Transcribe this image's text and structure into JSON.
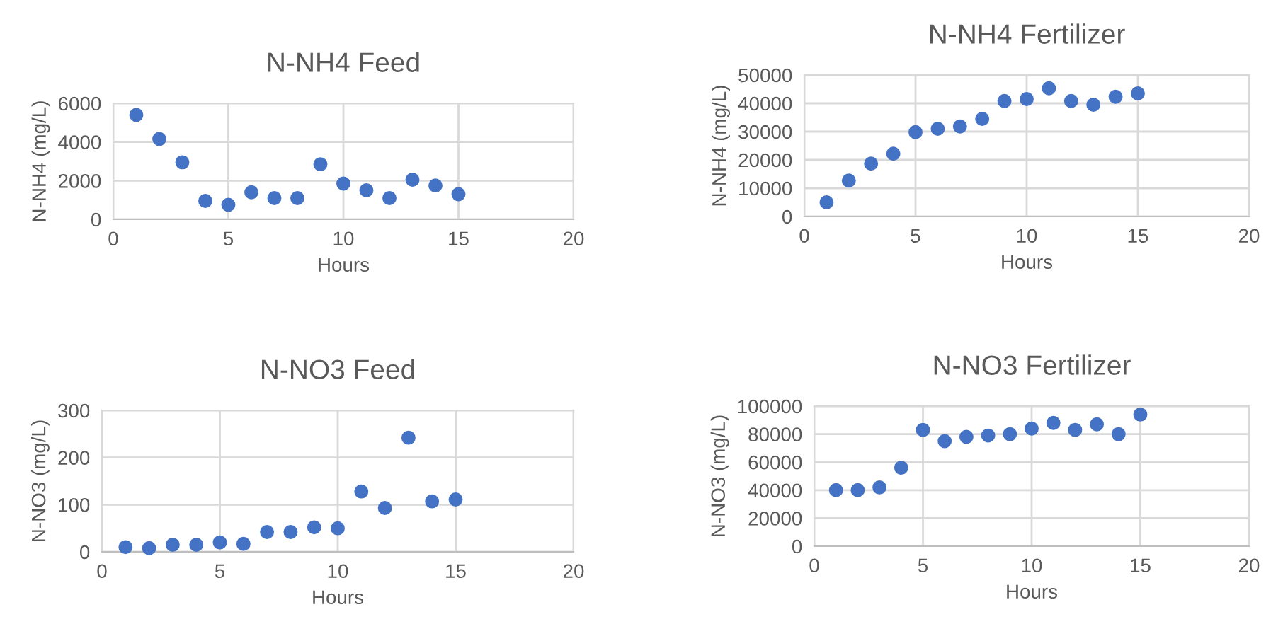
{
  "chart_data": [
    {
      "type": "scatter",
      "title": "N-NH4 Feed",
      "xlabel": "Hours",
      "ylabel": "N-NH4 (mg/L)",
      "x": [
        1,
        2,
        3,
        4,
        5,
        6,
        7,
        8,
        9,
        10,
        11,
        12,
        13,
        14,
        15
      ],
      "values": [
        5400,
        4150,
        2950,
        950,
        750,
        1400,
        1100,
        1100,
        2850,
        1850,
        1500,
        1100,
        2050,
        1750,
        1300
      ],
      "color": "#4472c4",
      "marker": "circle",
      "xlim": [
        0,
        20
      ],
      "xticks": [
        0,
        5,
        10,
        15,
        20
      ],
      "ylim": [
        0,
        6000
      ],
      "yticks": [
        0,
        2000,
        4000,
        6000
      ],
      "grid": true
    },
    {
      "type": "scatter",
      "title": "N-NH4 Fertilizer",
      "xlabel": "Hours",
      "ylabel": "N-NH4 (mg/L)",
      "x": [
        1,
        2,
        3,
        4,
        5,
        6,
        7,
        8,
        9,
        10,
        11,
        12,
        13,
        14,
        15
      ],
      "values": [
        5000,
        12700,
        18700,
        22200,
        29800,
        31000,
        31800,
        34500,
        40800,
        41500,
        45300,
        40800,
        39500,
        42300,
        43500
      ],
      "color": "#4472c4",
      "marker": "circle",
      "xlim": [
        0,
        20
      ],
      "xticks": [
        0,
        5,
        10,
        15,
        20
      ],
      "ylim": [
        0,
        50000
      ],
      "yticks": [
        0,
        10000,
        20000,
        30000,
        40000,
        50000
      ],
      "grid": true
    },
    {
      "type": "scatter",
      "title": "N-NO3 Feed",
      "xlabel": "Hours",
      "ylabel": "N-NO3 (mg/L)",
      "x": [
        1,
        2,
        3,
        4,
        5,
        6,
        7,
        8,
        9,
        10,
        11,
        12,
        13,
        14,
        15
      ],
      "values": [
        10,
        8,
        15,
        15,
        20,
        17,
        42,
        42,
        52,
        50,
        128,
        93,
        242,
        107,
        111
      ],
      "color": "#4472c4",
      "marker": "circle",
      "xlim": [
        0,
        20
      ],
      "xticks": [
        0,
        5,
        10,
        15,
        20
      ],
      "ylim": [
        0,
        300
      ],
      "yticks": [
        0,
        100,
        200,
        300
      ],
      "grid": true
    },
    {
      "type": "scatter",
      "title": "N-NO3 Fertilizer",
      "xlabel": "Hours",
      "ylabel": "N-NO3 (mg/L)",
      "x": [
        1,
        2,
        3,
        4,
        5,
        6,
        7,
        8,
        9,
        10,
        11,
        12,
        13,
        14,
        15
      ],
      "values": [
        40000,
        40000,
        42000,
        56000,
        83000,
        75000,
        78000,
        79000,
        80000,
        84000,
        88000,
        83000,
        87000,
        80000,
        94000
      ],
      "color": "#4472c4",
      "marker": "circle",
      "xlim": [
        0,
        20
      ],
      "xticks": [
        0,
        5,
        10,
        15,
        20
      ],
      "ylim": [
        0,
        100000
      ],
      "yticks": [
        0,
        20000,
        40000,
        60000,
        80000,
        100000
      ],
      "grid": true
    }
  ]
}
